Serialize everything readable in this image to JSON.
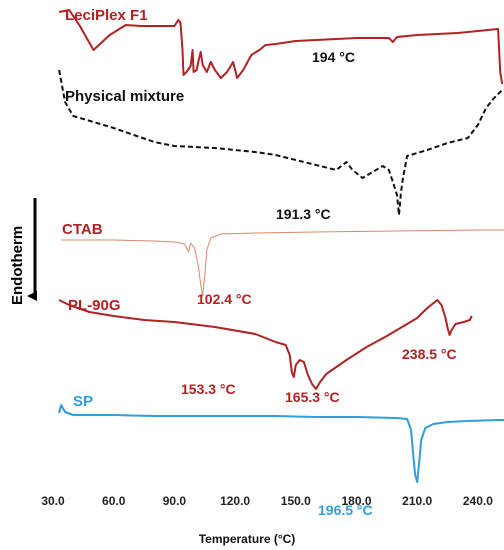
{
  "chart_data": {
    "type": "line",
    "title": "",
    "xlabel": "Temperature (°C)",
    "ylabel": "Endotherm",
    "xlim": [
      30,
      250
    ],
    "x_ticks": [
      "30.0",
      "60.0",
      "90.0",
      "120.0",
      "150.0",
      "180.0",
      "210.0",
      "240.0"
    ],
    "grid": false,
    "series": [
      {
        "name": "LeciPlex F1",
        "color": "#b22222",
        "style": "solid",
        "points": [
          [
            33,
            12
          ],
          [
            38,
            10
          ],
          [
            43,
            25
          ],
          [
            50,
            50
          ],
          [
            58,
            35
          ],
          [
            66,
            25
          ],
          [
            74,
            26
          ],
          [
            82,
            26
          ],
          [
            90,
            26
          ],
          [
            92,
            20
          ],
          [
            93,
            23
          ],
          [
            94,
            50
          ],
          [
            94.5,
            75
          ],
          [
            96,
            72
          ],
          [
            98,
            66
          ],
          [
            99,
            50
          ],
          [
            99.5,
            72
          ],
          [
            101,
            70
          ],
          [
            102,
            60
          ],
          [
            103,
            52
          ],
          [
            104,
            65
          ],
          [
            106,
            72
          ],
          [
            108,
            62
          ],
          [
            110,
            70
          ],
          [
            113,
            78
          ],
          [
            116,
            72
          ],
          [
            119,
            62
          ],
          [
            121,
            78
          ],
          [
            124,
            70
          ],
          [
            128,
            55
          ],
          [
            132,
            50
          ],
          [
            135,
            45
          ],
          [
            140,
            44
          ],
          [
            150,
            41
          ],
          [
            160,
            40
          ],
          [
            170,
            39
          ],
          [
            180,
            38
          ],
          [
            190,
            38
          ],
          [
            196,
            38
          ],
          [
            198,
            42
          ],
          [
            200,
            37
          ],
          [
            210,
            35
          ],
          [
            220,
            34
          ],
          [
            230,
            33
          ],
          [
            240,
            31
          ],
          [
            250,
            29
          ],
          [
            251,
            72
          ],
          [
            252,
            84
          ]
        ],
        "peak": {
          "x": 198,
          "label": "194 °C"
        }
      },
      {
        "name": "Physical mixture",
        "color": "#111111",
        "style": "dashed",
        "points": [
          [
            33,
            70
          ],
          [
            36,
            102
          ],
          [
            40,
            116
          ],
          [
            50,
            122
          ],
          [
            60,
            128
          ],
          [
            70,
            135
          ],
          [
            80,
            142
          ],
          [
            90,
            146
          ],
          [
            100,
            147
          ],
          [
            110,
            148
          ],
          [
            120,
            150
          ],
          [
            130,
            152
          ],
          [
            140,
            155
          ],
          [
            150,
            160
          ],
          [
            160,
            165
          ],
          [
            170,
            170
          ],
          [
            175,
            162
          ],
          [
            178,
            170
          ],
          [
            183,
            178
          ],
          [
            188,
            172
          ],
          [
            193,
            166
          ],
          [
            196,
            170
          ],
          [
            198,
            182
          ],
          [
            200,
            195
          ],
          [
            201,
            215
          ],
          [
            202,
            192
          ],
          [
            203,
            178
          ],
          [
            205,
            156
          ],
          [
            215,
            150
          ],
          [
            225,
            143
          ],
          [
            235,
            138
          ],
          [
            240,
            125
          ],
          [
            244,
            108
          ],
          [
            248,
            98
          ],
          [
            252,
            90
          ]
        ],
        "peak": {
          "x": 201,
          "label": "191.3 °C"
        }
      },
      {
        "name": "CTAB",
        "color": "#d98868",
        "style": "solid",
        "points": [
          [
            34,
            240
          ],
          [
            60,
            240
          ],
          [
            80,
            241
          ],
          [
            90,
            242
          ],
          [
            95,
            244
          ],
          [
            97,
            252
          ],
          [
            98,
            243
          ],
          [
            100,
            248
          ],
          [
            102,
            268
          ],
          [
            103,
            285
          ],
          [
            104,
            296
          ],
          [
            105,
            275
          ],
          [
            106,
            250
          ],
          [
            108,
            238
          ],
          [
            113,
            234
          ],
          [
            130,
            233
          ],
          [
            160,
            232
          ],
          [
            200,
            231
          ],
          [
            240,
            230
          ],
          [
            270,
            230
          ]
        ],
        "peak": {
          "x": 104,
          "label": "102.4 °C"
        }
      },
      {
        "name": "PL-90G",
        "color": "#b22222",
        "style": "solid",
        "points": [
          [
            33,
            300
          ],
          [
            38,
            305
          ],
          [
            48,
            312
          ],
          [
            60,
            316
          ],
          [
            75,
            320
          ],
          [
            90,
            322
          ],
          [
            110,
            327
          ],
          [
            130,
            334
          ],
          [
            140,
            342
          ],
          [
            145,
            345
          ],
          [
            147,
            355
          ],
          [
            148,
            372
          ],
          [
            149,
            377
          ],
          [
            150,
            365
          ],
          [
            152,
            360
          ],
          [
            154,
            362
          ],
          [
            156,
            375
          ],
          [
            158,
            384
          ],
          [
            160,
            389
          ],
          [
            162,
            382
          ],
          [
            165,
            374
          ],
          [
            175,
            360
          ],
          [
            185,
            347
          ],
          [
            195,
            336
          ],
          [
            205,
            324
          ],
          [
            210,
            318
          ],
          [
            215,
            308
          ],
          [
            220,
            300
          ],
          [
            222,
            305
          ],
          [
            224,
            318
          ],
          [
            225,
            328
          ],
          [
            226,
            335
          ],
          [
            227,
            330
          ],
          [
            229,
            324
          ],
          [
            233,
            322
          ],
          [
            236,
            320
          ],
          [
            237,
            316
          ]
        ],
        "peak_labels": [
          "153.3 °C",
          "165.3 °C",
          "238.5 °C"
        ]
      },
      {
        "name": "SP",
        "color": "#2f9ee0",
        "style": "solid",
        "points": [
          [
            33,
            413
          ],
          [
            34,
            405
          ],
          [
            36,
            412
          ],
          [
            40,
            415
          ],
          [
            60,
            415
          ],
          [
            80,
            416
          ],
          [
            100,
            416
          ],
          [
            120,
            416
          ],
          [
            140,
            416
          ],
          [
            160,
            417
          ],
          [
            180,
            417
          ],
          [
            200,
            418
          ],
          [
            205,
            419
          ],
          [
            207,
            430
          ],
          [
            208,
            455
          ],
          [
            209,
            475
          ],
          [
            210,
            482
          ],
          [
            211,
            462
          ],
          [
            212,
            440
          ],
          [
            214,
            428
          ],
          [
            218,
            424
          ],
          [
            225,
            422
          ],
          [
            235,
            421
          ],
          [
            250,
            420
          ],
          [
            256,
            420
          ],
          [
            258,
            421
          ]
        ],
        "peak": {
          "x": 209,
          "label": "196.5 °C"
        }
      }
    ]
  }
}
